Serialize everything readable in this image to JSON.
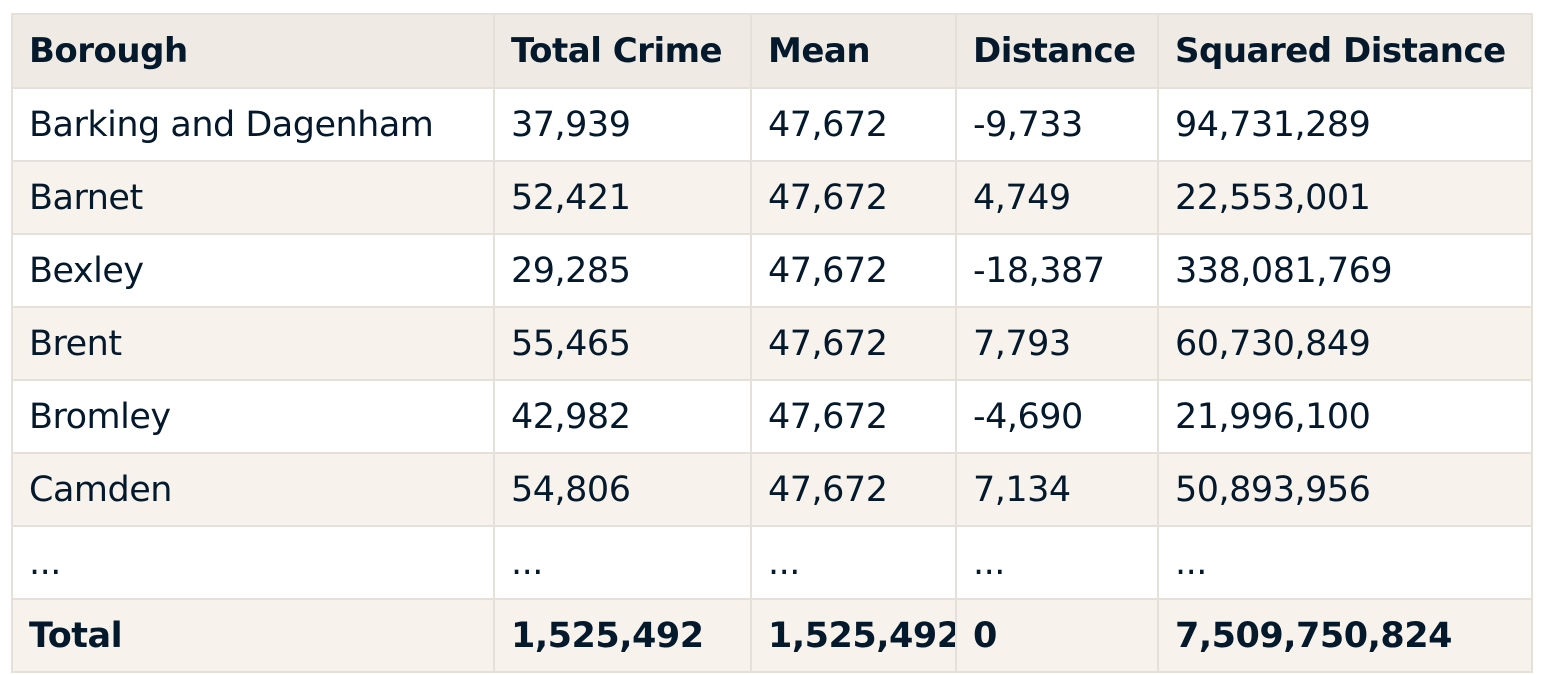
{
  "table": {
    "headers": [
      "Borough",
      "Total Crime",
      "Mean",
      "Distance",
      "Squared Distance"
    ],
    "rows": [
      [
        "Barking and Dagenham",
        "37,939",
        "47,672",
        "-9,733",
        "94,731,289"
      ],
      [
        "Barnet",
        "52,421",
        "47,672",
        "4,749",
        "22,553,001"
      ],
      [
        "Bexley",
        "29,285",
        "47,672",
        "-18,387",
        "338,081,769"
      ],
      [
        "Brent",
        "55,465",
        "47,672",
        "7,793",
        "60,730,849"
      ],
      [
        "Bromley",
        "42,982",
        "47,672",
        "-4,690",
        "21,996,100"
      ],
      [
        "Camden",
        "54,806",
        "47,672",
        "7,134",
        "50,893,956"
      ],
      [
        "...",
        "...",
        "...",
        "...",
        "..."
      ]
    ],
    "total": [
      "Total",
      "1,525,492",
      "1,525,492",
      "0",
      "7,509,750,824"
    ]
  },
  "colors": {
    "text": "#05192d",
    "header_bg": "#efebe4",
    "striped_bg": "#f7f3ec",
    "border": "#e5e1da"
  }
}
